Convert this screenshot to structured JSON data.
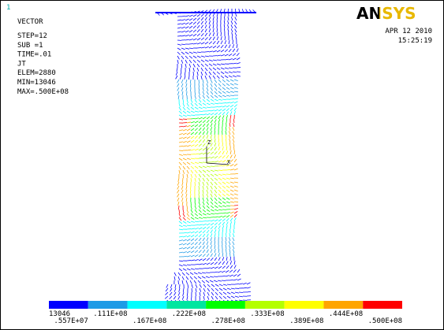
{
  "window_number": "1",
  "info": [
    "VECTOR",
    "STEP=12",
    "SUB =1",
    "TIME=.01",
    "JT",
    "ELEM=2880",
    "MIN=13046",
    "MAX=.500E+08"
  ],
  "logo": "ANSYS",
  "date": "APR 12 2010",
  "time": "15:25:19",
  "triad": [
    "Z",
    "X"
  ],
  "legend": {
    "colors": [
      "#0000ff",
      "#1e9be6",
      "#00ffff",
      "#00e6a0",
      "#00ff00",
      "#b4ff00",
      "#ffff00",
      "#ffa500",
      "#ff0000"
    ],
    "labels": [
      "13046",
      ".557E+07",
      ".111E+08",
      ".167E+08",
      ".222E+08",
      ".278E+08",
      ".333E+08",
      ".389E+08",
      ".444E+08",
      ".500E+08"
    ]
  }
}
